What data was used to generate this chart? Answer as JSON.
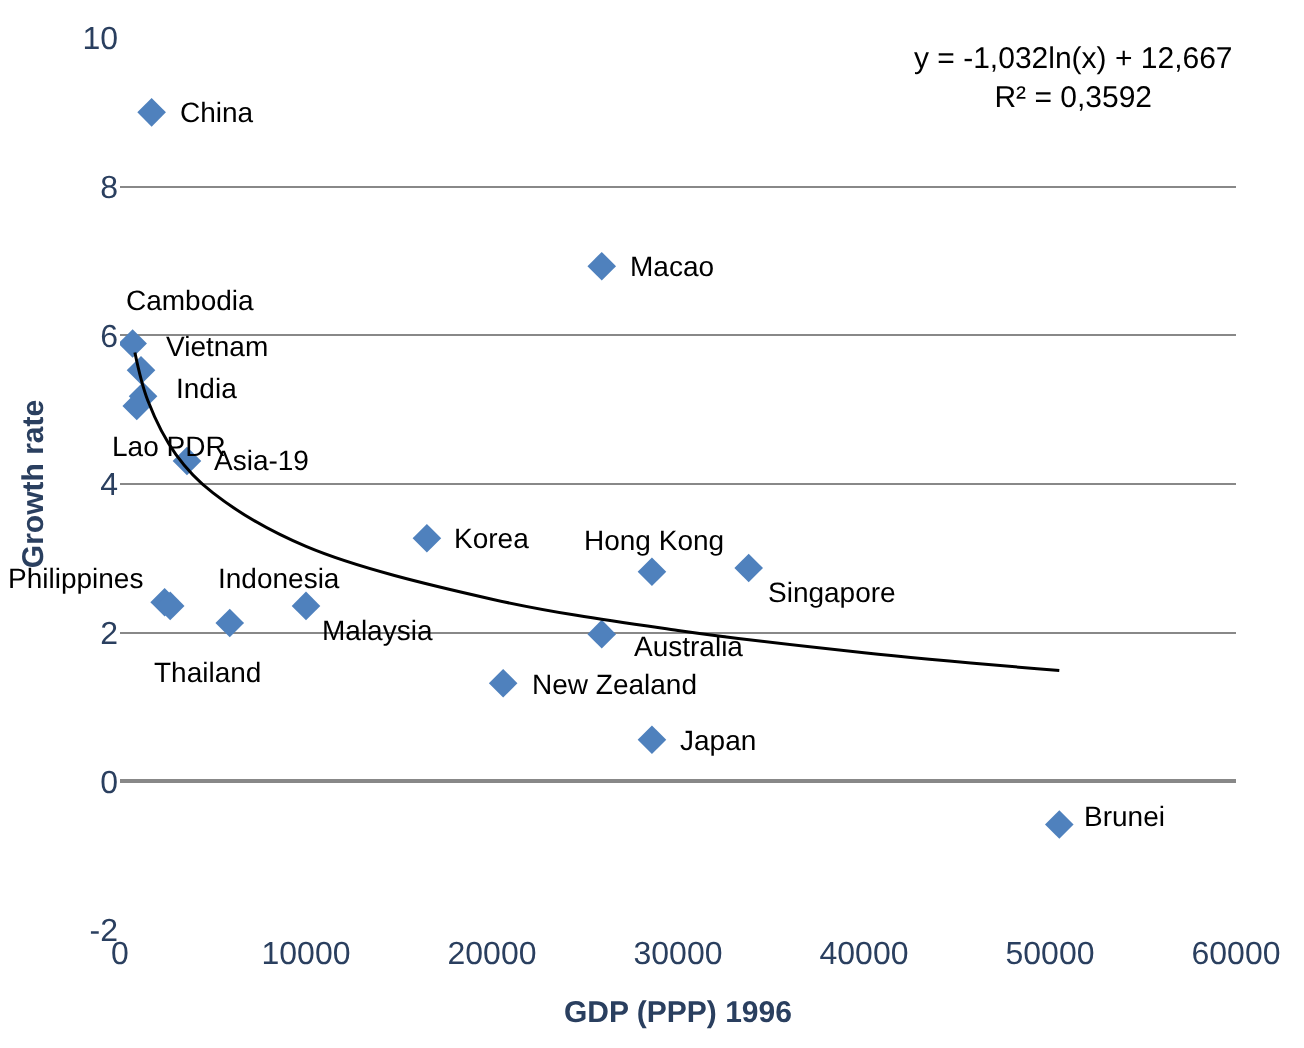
{
  "chart_data": {
    "type": "scatter",
    "xlabel": "GDP (PPP) 1996",
    "ylabel": "Growth rate",
    "xlim": [
      0,
      60000
    ],
    "xticks": [
      0,
      10000,
      20000,
      30000,
      40000,
      50000,
      60000
    ],
    "ylim": [
      -2,
      10
    ],
    "yticks": [
      -2,
      0,
      2,
      4,
      6,
      8,
      10
    ],
    "grid": "y",
    "marker": "diamond",
    "series": [
      {
        "color": "#4f81bd",
        "x": [
          1700,
          25900,
          680,
          1130,
          1240,
          900,
          3600,
          16500,
          28600,
          33800,
          2400,
          2700,
          5900,
          10000,
          25900,
          20600,
          28600,
          50500
        ],
        "values": [
          9.0,
          6.93,
          5.89,
          5.53,
          5.18,
          5.05,
          4.31,
          3.27,
          2.82,
          2.87,
          2.41,
          2.36,
          2.13,
          2.36,
          1.98,
          1.32,
          0.56,
          -0.58
        ]
      },
      {
        "type": "line",
        "color": "#000000",
        "marker": "none",
        "x": [
          800,
          1500,
          3000,
          5000,
          10000,
          20000,
          30000,
          40000,
          50500
        ],
        "values": [
          5.77,
          5.12,
          4.4,
          3.88,
          3.16,
          2.45,
          2.03,
          1.73,
          1.49
        ]
      }
    ],
    "annotations": [
      {
        "text": "China",
        "x": 1700,
        "y": 9.0
      },
      {
        "text": "Macao",
        "x": 25900,
        "y": 6.93
      },
      {
        "text": "Cambodia",
        "x": 680,
        "y": 5.89
      },
      {
        "text": "Vietnam",
        "x": 1130,
        "y": 5.53
      },
      {
        "text": "India",
        "x": 1240,
        "y": 5.18
      },
      {
        "text": "Lao PDR",
        "x": 900,
        "y": 5.05
      },
      {
        "text": "Asia-19",
        "x": 3600,
        "y": 4.31
      },
      {
        "text": "Korea",
        "x": 16500,
        "y": 3.27
      },
      {
        "text": "Hong Kong",
        "x": 28600,
        "y": 2.82
      },
      {
        "text": "Singapore",
        "x": 33800,
        "y": 2.87
      },
      {
        "text": "Philippines",
        "x": 2400,
        "y": 2.41
      },
      {
        "text": "Indonesia",
        "x": 2700,
        "y": 2.36
      },
      {
        "text": "Thailand",
        "x": 5900,
        "y": 2.13
      },
      {
        "text": "Malaysia",
        "x": 10000,
        "y": 2.36
      },
      {
        "text": "Australia",
        "x": 25900,
        "y": 1.98
      },
      {
        "text": "New Zealand",
        "x": 20600,
        "y": 1.32
      },
      {
        "text": "Japan",
        "x": 28600,
        "y": 0.56
      },
      {
        "text": "Brunei",
        "x": 50500,
        "y": -0.58
      },
      "y = -1,032ln(x) + 12,667\nR² = 0,3592"
    ]
  }
}
